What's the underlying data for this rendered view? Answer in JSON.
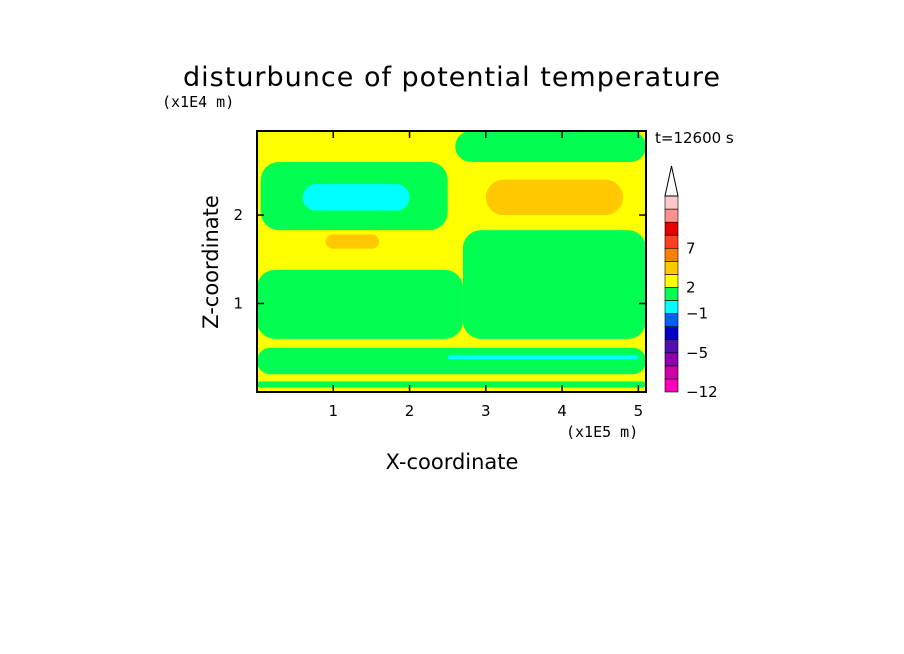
{
  "chart_data": {
    "type": "heatmap",
    "title": "disturbunce of potential temperature",
    "time_label": "t=12600 s",
    "xlabel": "X-coordinate",
    "ylabel": "Z-coordinate",
    "x_unit": "(x1E5 m)",
    "y_unit": "(x1E4 m)",
    "xlim": [
      0,
      5.1
    ],
    "ylim": [
      0,
      2.95
    ],
    "x_ticks": [
      "1",
      "2",
      "3",
      "4",
      "5"
    ],
    "y_ticks": [
      "1",
      "2"
    ],
    "colorbar": {
      "tick_labels": [
        "7",
        "2",
        "-1",
        "-5",
        "-12"
      ],
      "colors": [
        "#ff00c0",
        "#d000a8",
        "#9000b0",
        "#5010b0",
        "#0000c8",
        "#0060ff",
        "#00ffff",
        "#00ff50",
        "#ffff00",
        "#ffc800",
        "#ff8000",
        "#ff4020",
        "#e80000",
        "#ff9090",
        "#ffc8c8"
      ],
      "extend_top": true
    },
    "regions": [
      {
        "level": "yellow",
        "color": "#ffff00",
        "x": [
          0,
          5.1
        ],
        "z": [
          0,
          2.95
        ]
      },
      {
        "level": "green",
        "color": "#00ff50",
        "x": [
          0,
          5.1
        ],
        "z": [
          0.05,
          0.12
        ]
      },
      {
        "level": "green",
        "color": "#00ff50",
        "x": [
          0,
          5.1
        ],
        "z": [
          0.2,
          0.5
        ]
      },
      {
        "level": "green",
        "color": "#00ff50",
        "x": [
          0,
          2.7
        ],
        "z": [
          0.6,
          1.38
        ]
      },
      {
        "level": "green",
        "color": "#00ff50",
        "x": [
          2.7,
          5.1
        ],
        "z": [
          0.6,
          1.83
        ]
      },
      {
        "level": "green",
        "color": "#00ff50",
        "x": [
          0.05,
          2.5
        ],
        "z": [
          1.83,
          2.6
        ]
      },
      {
        "level": "green",
        "color": "#00ff50",
        "x": [
          2.6,
          5.1
        ],
        "z": [
          2.6,
          2.95
        ]
      },
      {
        "level": "cyan",
        "color": "#00ffff",
        "x": [
          0.6,
          2.0
        ],
        "z": [
          2.05,
          2.35
        ]
      },
      {
        "level": "cyan",
        "color": "#00ffff",
        "x": [
          2.5,
          5.0
        ],
        "z": [
          0.37,
          0.42
        ]
      },
      {
        "level": "orange",
        "color": "#ffc800",
        "x": [
          3.0,
          4.8
        ],
        "z": [
          2.0,
          2.4
        ]
      },
      {
        "level": "orange",
        "color": "#ffc800",
        "x": [
          0.9,
          1.6
        ],
        "z": [
          1.62,
          1.78
        ]
      }
    ]
  }
}
